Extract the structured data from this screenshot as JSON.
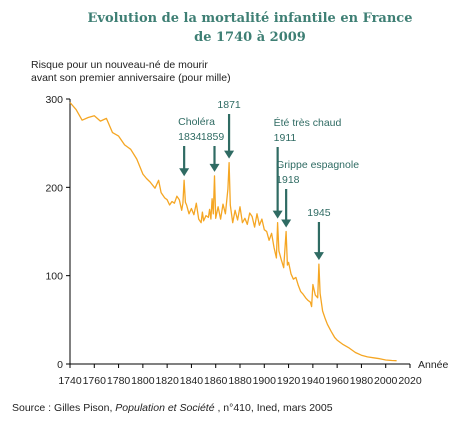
{
  "chart_data": {
    "type": "line",
    "title": "Evolution de la mortalité infantile en France",
    "subtitle": "de 1740 à 2009",
    "ylabel_line1": "Risque pour un nouveau-né de mourir",
    "ylabel_line2": "avant son premier anniversaire (pour mille)",
    "xlabel": "Année",
    "xlim": [
      1740,
      2020
    ],
    "ylim": [
      0,
      300
    ],
    "xticks": [
      1740,
      1760,
      1780,
      1800,
      1820,
      1840,
      1860,
      1880,
      1900,
      1920,
      1940,
      1960,
      1980,
      2000,
      2020
    ],
    "yticks": [
      0,
      100,
      200,
      300
    ],
    "grid": false,
    "series": [
      {
        "color": "#f5a623",
        "x": [
          1740,
          1745,
          1750,
          1755,
          1760,
          1765,
          1770,
          1775,
          1780,
          1785,
          1790,
          1795,
          1800,
          1803,
          1806,
          1810,
          1813,
          1815,
          1818,
          1820,
          1822,
          1824,
          1826,
          1828,
          1830,
          1832,
          1833,
          1834,
          1835,
          1836,
          1838,
          1840,
          1842,
          1844,
          1846,
          1848,
          1849,
          1850,
          1852,
          1854,
          1855,
          1856,
          1857,
          1858,
          1859,
          1860,
          1862,
          1864,
          1866,
          1868,
          1870,
          1871,
          1872,
          1874,
          1876,
          1878,
          1880,
          1882,
          1884,
          1886,
          1888,
          1890,
          1892,
          1894,
          1896,
          1898,
          1900,
          1902,
          1904,
          1906,
          1908,
          1910,
          1911,
          1912,
          1914,
          1916,
          1918,
          1919,
          1920,
          1922,
          1924,
          1926,
          1928,
          1930,
          1932,
          1934,
          1936,
          1938,
          1939,
          1940,
          1942,
          1944,
          1945,
          1946,
          1948,
          1950,
          1952,
          1955,
          1958,
          1960,
          1965,
          1970,
          1975,
          1980,
          1985,
          1990,
          1995,
          2000,
          2005,
          2009
        ],
        "y": [
          296,
          288,
          276,
          279,
          281,
          275,
          278,
          262,
          258,
          248,
          243,
          232,
          215,
          210,
          206,
          199,
          208,
          194,
          188,
          186,
          180,
          184,
          182,
          190,
          186,
          174,
          182,
          208,
          183,
          180,
          170,
          176,
          169,
          182,
          164,
          160,
          172,
          162,
          168,
          166,
          175,
          164,
          187,
          170,
          213,
          165,
          178,
          164,
          181,
          170,
          198,
          228,
          180,
          160,
          174,
          163,
          178,
          160,
          165,
          158,
          171,
          167,
          155,
          170,
          157,
          164,
          152,
          150,
          140,
          148,
          132,
          120,
          160,
          128,
          118,
          109,
          150,
          112,
          115,
          102,
          96,
          98,
          89,
          82,
          79,
          75,
          72,
          70,
          65,
          90,
          78,
          75,
          113,
          80,
          60,
          52,
          45,
          37,
          30,
          27,
          22,
          18,
          13,
          10,
          8,
          7,
          6,
          4.5,
          4,
          3.7
        ]
      }
    ],
    "annotations": [
      {
        "lines": [
          "Choléra",
          "1834"
        ],
        "year": 1834
      },
      {
        "lines": [
          "",
          "1859"
        ],
        "year": 1859
      },
      {
        "lines": [
          "1871"
        ],
        "year": 1871
      },
      {
        "lines": [
          "Été très chaud",
          "1911"
        ],
        "year": 1911
      },
      {
        "lines": [
          "Grippe espagnole",
          "1918"
        ],
        "year": 1918
      },
      {
        "lines": [
          "1945"
        ],
        "year": 1945
      }
    ]
  },
  "source": {
    "prefix": "Source : Gilles Pison, ",
    "publication": "Population et Société",
    "suffix": " , n°410, Ined, mars 2005"
  }
}
